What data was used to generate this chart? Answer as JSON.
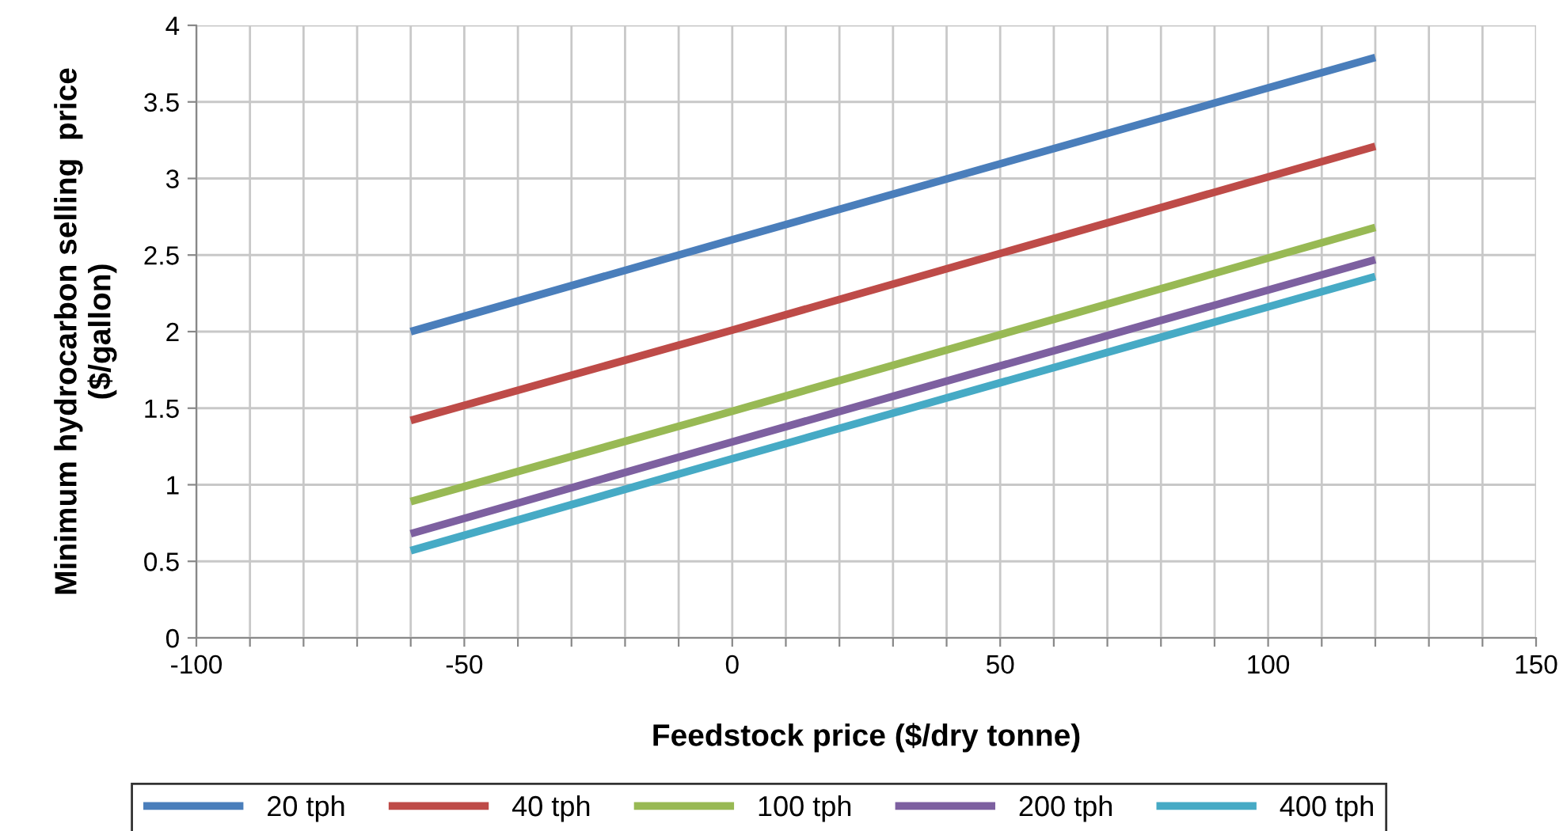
{
  "chart_data": {
    "type": "line",
    "xlabel": "Feedstock price ($/dry tonne)",
    "ylabel": "Minimum hydrocarbon selling  price\n($/gallon)",
    "x": [
      -60,
      0,
      120
    ],
    "series": [
      {
        "name": "20 tph",
        "color": "#4a7ebb",
        "values": [
          2.0,
          2.6,
          3.79
        ]
      },
      {
        "name": "40 tph",
        "color": "#be4b48",
        "values": [
          1.42,
          2.01,
          3.21
        ]
      },
      {
        "name": "100 tph",
        "color": "#98b954",
        "values": [
          0.89,
          1.48,
          2.68
        ]
      },
      {
        "name": "200 tph",
        "color": "#7d60a0",
        "values": [
          0.68,
          1.28,
          2.47
        ]
      },
      {
        "name": "400 tph",
        "color": "#46aac5",
        "values": [
          0.57,
          1.17,
          2.36
        ]
      }
    ],
    "xlim": [
      -100,
      150
    ],
    "xticks": [
      -100,
      {
        "value": -90,
        "label": null
      },
      {
        "value": -80,
        "label": null
      },
      {
        "value": -70,
        "label": null
      },
      {
        "value": -60,
        "label": null
      },
      -50,
      {
        "value": -40,
        "label": null
      },
      {
        "value": -30,
        "label": null
      },
      {
        "value": -20,
        "label": null
      },
      {
        "value": -10,
        "label": null
      },
      0,
      {
        "value": 10,
        "label": null
      },
      {
        "value": 20,
        "label": null
      },
      {
        "value": 30,
        "label": null
      },
      {
        "value": 40,
        "label": null
      },
      50,
      {
        "value": 60,
        "label": null
      },
      {
        "value": 70,
        "label": null
      },
      {
        "value": 80,
        "label": null
      },
      {
        "value": 90,
        "label": null
      },
      100,
      {
        "value": 110,
        "label": null
      },
      {
        "value": 120,
        "label": null
      },
      {
        "value": 130,
        "label": null
      },
      {
        "value": 140,
        "label": null
      },
      150
    ],
    "ylim": [
      0,
      4
    ],
    "yticks": [
      0,
      0.5,
      1,
      1.5,
      2,
      2.5,
      3,
      3.5,
      4
    ],
    "grid": true,
    "legend": "bottom",
    "marker": "none",
    "line_style": "solid"
  }
}
